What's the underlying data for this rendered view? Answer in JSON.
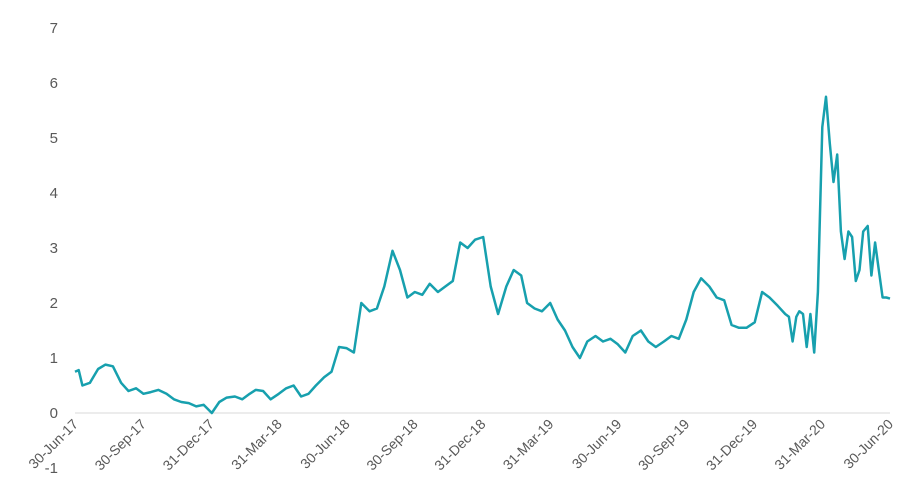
{
  "chart_data": {
    "type": "line",
    "title": "",
    "xlabel": "",
    "ylabel": "",
    "ylim": [
      -1,
      7
    ],
    "y_ticks": [
      "7",
      "6",
      "5",
      "4",
      "3",
      "2",
      "1",
      "0",
      "-1"
    ],
    "x_ticks": [
      "30-Jun-17",
      "30-Sep-17",
      "31-Dec-17",
      "31-Mar-18",
      "30-Jun-18",
      "30-Sep-18",
      "31-Dec-18",
      "31-Mar-19",
      "30-Jun-19",
      "30-Sep-19",
      "31-Dec-19",
      "31-Mar-20",
      "30-Jun-20"
    ],
    "grid": false,
    "legend": "none",
    "line_color": "#17A0AE",
    "series": [
      {
        "x": [
          "2017-06-30",
          "2017-07-05",
          "2017-07-10",
          "2017-07-20",
          "2017-07-31",
          "2017-08-10",
          "2017-08-20",
          "2017-08-31",
          "2017-09-10",
          "2017-09-20",
          "2017-09-30",
          "2017-10-10",
          "2017-10-20",
          "2017-10-31",
          "2017-11-10",
          "2017-11-20",
          "2017-11-30",
          "2017-12-10",
          "2017-12-20",
          "2017-12-31",
          "2018-01-10",
          "2018-01-20",
          "2018-01-31",
          "2018-02-10",
          "2018-02-20",
          "2018-02-28",
          "2018-03-10",
          "2018-03-20",
          "2018-03-31",
          "2018-04-10",
          "2018-04-20",
          "2018-04-30",
          "2018-05-10",
          "2018-05-20",
          "2018-05-31",
          "2018-06-10",
          "2018-06-20",
          "2018-06-30",
          "2018-07-10",
          "2018-07-20",
          "2018-07-31",
          "2018-08-10",
          "2018-08-20",
          "2018-08-31",
          "2018-09-10",
          "2018-09-20",
          "2018-09-30",
          "2018-10-10",
          "2018-10-20",
          "2018-10-31",
          "2018-11-10",
          "2018-11-20",
          "2018-11-30",
          "2018-12-10",
          "2018-12-20",
          "2018-12-31",
          "2019-01-10",
          "2019-01-20",
          "2019-01-31",
          "2019-02-10",
          "2019-02-20",
          "2019-02-28",
          "2019-03-10",
          "2019-03-20",
          "2019-03-31",
          "2019-04-10",
          "2019-04-20",
          "2019-04-30",
          "2019-05-10",
          "2019-05-20",
          "2019-05-31",
          "2019-06-10",
          "2019-06-20",
          "2019-06-30",
          "2019-07-10",
          "2019-07-20",
          "2019-07-31",
          "2019-08-10",
          "2019-08-20",
          "2019-08-31",
          "2019-09-10",
          "2019-09-20",
          "2019-09-30",
          "2019-10-10",
          "2019-10-20",
          "2019-10-31",
          "2019-11-10",
          "2019-11-20",
          "2019-11-30",
          "2019-12-10",
          "2019-12-20",
          "2019-12-31",
          "2020-01-10",
          "2020-01-20",
          "2020-01-31",
          "2020-02-10",
          "2020-02-15",
          "2020-02-20",
          "2020-02-25",
          "2020-02-29",
          "2020-03-05",
          "2020-03-10",
          "2020-03-15",
          "2020-03-20",
          "2020-03-25",
          "2020-03-31",
          "2020-04-05",
          "2020-04-10",
          "2020-04-15",
          "2020-04-20",
          "2020-04-25",
          "2020-04-30",
          "2020-05-05",
          "2020-05-10",
          "2020-05-15",
          "2020-05-20",
          "2020-05-25",
          "2020-05-31",
          "2020-06-05",
          "2020-06-10",
          "2020-06-15",
          "2020-06-20",
          "2020-06-25",
          "2020-06-30"
        ],
        "values": [
          0.75,
          0.78,
          0.5,
          0.55,
          0.8,
          0.88,
          0.85,
          0.55,
          0.4,
          0.45,
          0.35,
          0.38,
          0.42,
          0.35,
          0.25,
          0.2,
          0.18,
          0.12,
          0.15,
          0.0,
          0.2,
          0.28,
          0.3,
          0.25,
          0.35,
          0.42,
          0.4,
          0.25,
          0.35,
          0.45,
          0.5,
          0.3,
          0.35,
          0.5,
          0.65,
          0.75,
          1.2,
          1.18,
          1.1,
          2.0,
          1.85,
          1.9,
          2.3,
          2.95,
          2.6,
          2.1,
          2.2,
          2.15,
          2.35,
          2.2,
          2.3,
          2.4,
          3.1,
          3.0,
          3.15,
          3.2,
          2.3,
          1.8,
          2.3,
          2.6,
          2.5,
          2.0,
          1.9,
          1.85,
          2.0,
          1.7,
          1.5,
          1.2,
          1.0,
          1.3,
          1.4,
          1.3,
          1.35,
          1.25,
          1.1,
          1.4,
          1.5,
          1.3,
          1.2,
          1.3,
          1.4,
          1.35,
          1.7,
          2.2,
          2.45,
          2.3,
          2.1,
          2.05,
          1.6,
          1.55,
          1.55,
          1.65,
          2.2,
          2.1,
          1.95,
          1.8,
          1.75,
          1.3,
          1.75,
          1.85,
          1.8,
          1.2,
          1.8,
          1.1,
          2.2,
          5.2,
          5.75,
          4.9,
          4.2,
          4.7,
          3.3,
          2.8,
          3.3,
          3.2,
          2.4,
          2.6,
          3.3,
          3.4,
          2.5,
          3.1,
          2.6,
          2.1,
          2.1,
          2.08
        ]
      }
    ]
  }
}
